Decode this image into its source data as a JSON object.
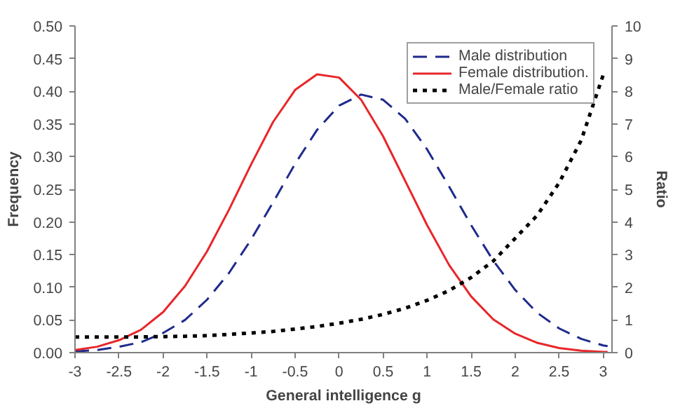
{
  "chart_data": {
    "type": "line",
    "xlabel": "General intelligence g",
    "ylabel": "Frequency",
    "y2label": "Ratio",
    "x": [
      -3,
      -2.75,
      -2.5,
      -2.25,
      -2,
      -1.75,
      -1.5,
      -1.25,
      -1,
      -0.75,
      -0.5,
      -0.25,
      0,
      0.25,
      0.5,
      0.75,
      1,
      1.25,
      1.5,
      1.75,
      2,
      2.25,
      2.5,
      2.75,
      3,
      3.05
    ],
    "series": [
      {
        "name": "Male distribution",
        "color": "#1f2a8c",
        "line_style": "dashed",
        "values": [
          0.002,
          0.004,
          0.009,
          0.016,
          0.03,
          0.05,
          0.081,
          0.122,
          0.173,
          0.23,
          0.289,
          0.341,
          0.378,
          0.395,
          0.387,
          0.358,
          0.311,
          0.254,
          0.195,
          0.141,
          0.096,
          0.061,
          0.037,
          0.021,
          0.011,
          0.01
        ]
      },
      {
        "name": "Female distribution.",
        "color": "#e8262a",
        "line_style": "solid",
        "values": [
          0.004,
          0.009,
          0.019,
          0.035,
          0.062,
          0.102,
          0.155,
          0.219,
          0.288,
          0.353,
          0.402,
          0.426,
          0.421,
          0.387,
          0.331,
          0.263,
          0.195,
          0.134,
          0.086,
          0.051,
          0.029,
          0.015,
          0.007,
          0.003,
          0.001,
          0.001
        ]
      },
      {
        "name": "Male/Female ratio",
        "color": "#000000",
        "line_style": "dotted",
        "axis": "y2",
        "values": [
          0.48,
          0.48,
          0.48,
          0.48,
          0.49,
          0.5,
          0.52,
          0.56,
          0.6,
          0.65,
          0.72,
          0.8,
          0.9,
          1.02,
          1.17,
          1.36,
          1.6,
          1.9,
          2.3,
          2.8,
          3.5,
          4.2,
          5.2,
          6.5,
          8.5,
          null
        ]
      }
    ],
    "xlim": [
      -3,
      3.1
    ],
    "xticks": [
      -3,
      -2.5,
      -2,
      -1.5,
      -1,
      -0.5,
      0,
      0.5,
      1,
      1.5,
      2,
      2.5,
      3
    ],
    "ylim": [
      0,
      0.5
    ],
    "yticks": [
      {
        "value": 0,
        "label": "0.00"
      },
      {
        "value": 0.05,
        "label": "0.05"
      },
      {
        "value": 0.1,
        "label": "0.10"
      },
      {
        "value": 0.15,
        "label": "0.15"
      },
      {
        "value": 0.2,
        "label": "0.20"
      },
      {
        "value": 0.25,
        "label": "0.25"
      },
      {
        "value": 0.3,
        "label": "0.30"
      },
      {
        "value": 0.35,
        "label": "0.35"
      },
      {
        "value": 0.4,
        "label": "0.40"
      },
      {
        "value": 0.45,
        "label": "0.45"
      },
      {
        "value": 0.5,
        "label": "0.50"
      }
    ],
    "y2lim": [
      0,
      10
    ],
    "y2ticks": [
      0,
      1,
      2,
      3,
      4,
      5,
      6,
      7,
      8,
      9,
      10
    ],
    "legend": "top right",
    "grid": false
  }
}
